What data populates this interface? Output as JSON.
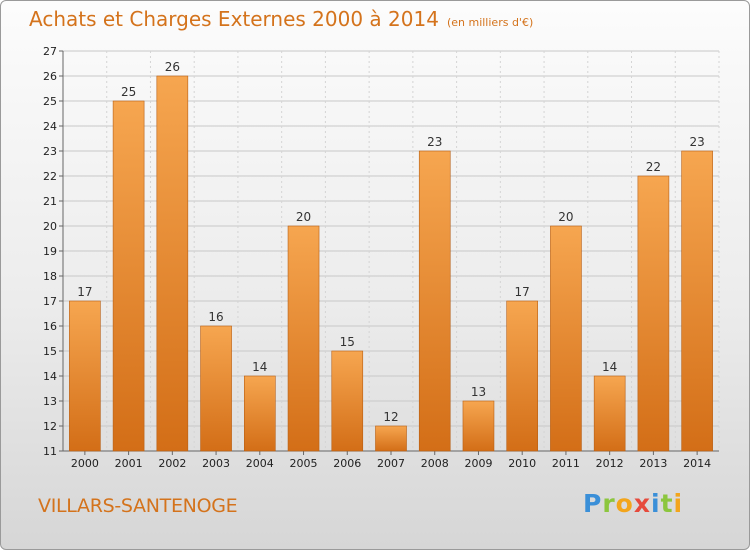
{
  "header": {
    "title": "Achats et Charges Externes 2000 à 2014",
    "subtitle": "(en milliers d'€)"
  },
  "footer": {
    "commune": "VILLARS-SANTENOGE",
    "logo_letters": [
      "P",
      "r",
      "o",
      "x",
      "i",
      "t",
      "i"
    ],
    "logo_colors": [
      "#3a8fd8",
      "#8cc63e",
      "#f3a51b",
      "#e64a3c",
      "#3a8fd8",
      "#8cc63e",
      "#f3a51b"
    ]
  },
  "chart_data": {
    "type": "bar",
    "categories": [
      "2000",
      "2001",
      "2002",
      "2003",
      "2004",
      "2005",
      "2006",
      "2007",
      "2008",
      "2009",
      "2010",
      "2011",
      "2012",
      "2013",
      "2014"
    ],
    "values": [
      17,
      25,
      26,
      16,
      14,
      20,
      15,
      12,
      23,
      13,
      17,
      20,
      14,
      22,
      23
    ],
    "ylim": [
      11,
      27
    ],
    "yticks": [
      11,
      12,
      13,
      14,
      15,
      16,
      17,
      18,
      19,
      20,
      21,
      22,
      23,
      24,
      25,
      26,
      27
    ],
    "grid": true,
    "bar_color_light": "#f6a650",
    "bar_color_dark": "#d36e17"
  }
}
